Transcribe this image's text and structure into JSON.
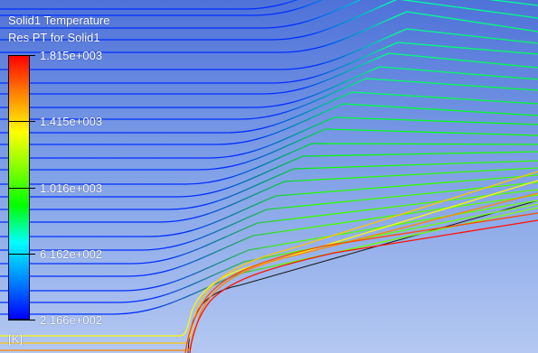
{
  "legend": {
    "title": "Solid1 Temperature",
    "subtitle": "Res PT for Solid1",
    "ticks": [
      "1.815e+003",
      "1.415e+003",
      "1.016e+003",
      "6.162e+002",
      "2.166e+002"
    ],
    "units": "[K]"
  },
  "colors": {
    "background_top": "#4e72d8",
    "background_bottom": "#b4c8f1",
    "colormap": [
      "#0000ff",
      "#0080ff",
      "#00ffff",
      "#00ff00",
      "#80ff00",
      "#ffff00",
      "#ff8000",
      "#ff0000"
    ]
  }
}
